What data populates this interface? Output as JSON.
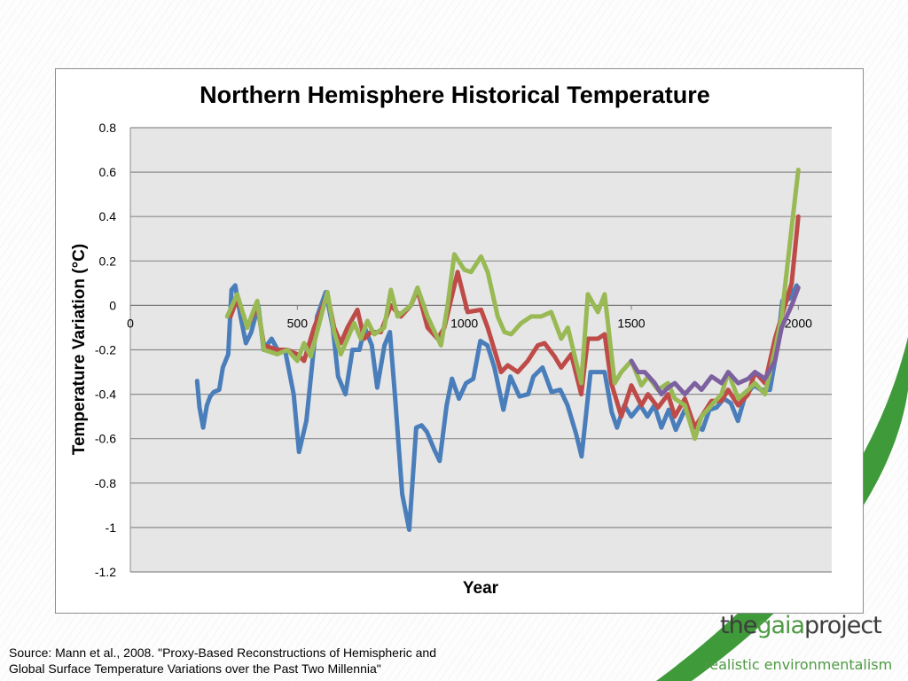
{
  "chart_data": {
    "type": "line",
    "title": "Northern Hemisphere Historical Temperature",
    "xlabel": "Year",
    "ylabel": "Temperature Variation (°C)",
    "xlim": [
      0,
      2100
    ],
    "ylim": [
      -1.2,
      0.8
    ],
    "x_ticks": [
      "0",
      "500",
      "1000",
      "1500",
      "2000"
    ],
    "x_tick_values": [
      0,
      500,
      1000,
      1500,
      2000
    ],
    "y_ticks": [
      "0.8",
      "0.6",
      "0.4",
      "0.2",
      "0",
      "-0.2",
      "-0.4",
      "-0.6",
      "-0.8",
      "-1",
      "-1.2"
    ],
    "y_tick_values": [
      0.8,
      0.6,
      0.4,
      0.2,
      0,
      -0.2,
      -0.4,
      -0.6,
      -0.8,
      -1,
      -1.2
    ],
    "grid": true,
    "legend": "none",
    "series": [
      {
        "color": "#4a7ebb",
        "x": [
          200,
          207,
          218,
          229,
          239,
          250,
          266,
          277,
          293,
          303,
          314,
          330,
          346,
          362,
          383,
          399,
          423,
          441,
          463,
          489,
          505,
          527,
          559,
          585,
          606,
          622,
          644,
          665,
          686,
          702,
          723,
          739,
          761,
          777,
          793,
          814,
          835,
          856,
          872,
          888,
          910,
          926,
          947,
          963,
          984,
          1005,
          1027,
          1048,
          1069,
          1090,
          1117,
          1138,
          1165,
          1191,
          1207,
          1234,
          1261,
          1287,
          1309,
          1335,
          1351,
          1378,
          1399,
          1420,
          1441,
          1457,
          1479,
          1500,
          1527,
          1548,
          1569,
          1590,
          1612,
          1633,
          1660,
          1686,
          1713,
          1734,
          1755,
          1777,
          1798,
          1819,
          1840,
          1867,
          1888,
          1915,
          1936,
          1952,
          1973,
          1995
        ],
        "y": [
          -0.34,
          -0.46,
          -0.55,
          -0.45,
          -0.41,
          -0.39,
          -0.38,
          -0.28,
          -0.22,
          0.07,
          0.09,
          -0.05,
          -0.17,
          -0.12,
          0.0,
          -0.2,
          -0.15,
          -0.2,
          -0.2,
          -0.4,
          -0.66,
          -0.52,
          -0.05,
          0.06,
          -0.1,
          -0.32,
          -0.4,
          -0.2,
          -0.2,
          -0.1,
          -0.18,
          -0.37,
          -0.18,
          -0.12,
          -0.42,
          -0.85,
          -1.01,
          -0.55,
          -0.54,
          -0.57,
          -0.65,
          -0.7,
          -0.45,
          -0.33,
          -0.42,
          -0.35,
          -0.33,
          -0.16,
          -0.18,
          -0.28,
          -0.47,
          -0.32,
          -0.41,
          -0.4,
          -0.32,
          -0.28,
          -0.39,
          -0.38,
          -0.45,
          -0.58,
          -0.68,
          -0.3,
          -0.3,
          -0.3,
          -0.48,
          -0.55,
          -0.45,
          -0.5,
          -0.45,
          -0.5,
          -0.45,
          -0.55,
          -0.47,
          -0.56,
          -0.47,
          -0.53,
          -0.56,
          -0.47,
          -0.46,
          -0.42,
          -0.44,
          -0.52,
          -0.41,
          -0.36,
          -0.38,
          -0.38,
          -0.2,
          0.02,
          0.03,
          0.09
        ]
      },
      {
        "color": "#be4b48",
        "x": [
          300,
          320,
          340,
          350,
          380,
          400,
          440,
          470,
          500,
          520,
          550,
          590,
          610,
          630,
          650,
          680,
          700,
          720,
          750,
          780,
          810,
          840,
          860,
          890,
          920,
          940,
          980,
          1010,
          1050,
          1070,
          1110,
          1130,
          1160,
          1190,
          1220,
          1240,
          1270,
          1290,
          1320,
          1350,
          1370,
          1400,
          1420,
          1440,
          1470,
          1500,
          1530,
          1550,
          1580,
          1610,
          1630,
          1660,
          1690,
          1710,
          1740,
          1770,
          1790,
          1820,
          1850,
          1870,
          1900,
          1930,
          1950,
          1980,
          2000
        ],
        "y": [
          -0.05,
          0.03,
          -0.05,
          -0.1,
          0.0,
          -0.18,
          -0.2,
          -0.2,
          -0.22,
          -0.25,
          -0.1,
          0.05,
          -0.1,
          -0.17,
          -0.1,
          -0.02,
          -0.15,
          -0.12,
          -0.12,
          0.0,
          -0.05,
          0.0,
          0.07,
          -0.1,
          -0.15,
          -0.1,
          0.15,
          -0.03,
          -0.02,
          -0.1,
          -0.3,
          -0.27,
          -0.3,
          -0.25,
          -0.18,
          -0.17,
          -0.23,
          -0.28,
          -0.22,
          -0.4,
          -0.15,
          -0.15,
          -0.13,
          -0.35,
          -0.5,
          -0.36,
          -0.45,
          -0.4,
          -0.46,
          -0.4,
          -0.5,
          -0.42,
          -0.55,
          -0.5,
          -0.43,
          -0.43,
          -0.38,
          -0.45,
          -0.4,
          -0.3,
          -0.35,
          -0.15,
          -0.05,
          0.1,
          0.4
        ]
      },
      {
        "color": "#98b954",
        "x": [
          290,
          320,
          350,
          380,
          400,
          440,
          470,
          500,
          520,
          540,
          590,
          610,
          630,
          670,
          690,
          710,
          730,
          760,
          780,
          800,
          840,
          860,
          890,
          930,
          950,
          970,
          1000,
          1020,
          1050,
          1070,
          1100,
          1120,
          1140,
          1170,
          1200,
          1230,
          1260,
          1290,
          1310,
          1350,
          1370,
          1400,
          1420,
          1450,
          1470,
          1500,
          1530,
          1550,
          1580,
          1610,
          1630,
          1660,
          1690,
          1710,
          1740,
          1770,
          1790,
          1820,
          1850,
          1870,
          1900,
          1930,
          1950,
          1980,
          2000
        ],
        "y": [
          -0.05,
          0.05,
          -0.1,
          0.02,
          -0.2,
          -0.22,
          -0.2,
          -0.25,
          -0.17,
          -0.23,
          0.06,
          -0.12,
          -0.22,
          -0.08,
          -0.15,
          -0.07,
          -0.13,
          -0.1,
          0.07,
          -0.05,
          0.0,
          0.08,
          -0.05,
          -0.18,
          0.0,
          0.23,
          0.16,
          0.15,
          0.22,
          0.15,
          -0.05,
          -0.12,
          -0.13,
          -0.08,
          -0.05,
          -0.05,
          -0.03,
          -0.15,
          -0.1,
          -0.35,
          0.05,
          -0.03,
          0.05,
          -0.35,
          -0.3,
          -0.25,
          -0.36,
          -0.32,
          -0.38,
          -0.35,
          -0.42,
          -0.45,
          -0.6,
          -0.5,
          -0.45,
          -0.4,
          -0.3,
          -0.42,
          -0.38,
          -0.35,
          -0.4,
          -0.2,
          -0.05,
          0.35,
          0.61
        ]
      },
      {
        "color": "#7d60a0",
        "x": [
          1500,
          1520,
          1540,
          1570,
          1590,
          1610,
          1630,
          1660,
          1690,
          1710,
          1740,
          1770,
          1790,
          1820,
          1850,
          1870,
          1900,
          1930,
          1950,
          1980,
          2000
        ],
        "y": [
          -0.25,
          -0.3,
          -0.3,
          -0.35,
          -0.4,
          -0.37,
          -0.35,
          -0.4,
          -0.35,
          -0.38,
          -0.32,
          -0.35,
          -0.3,
          -0.35,
          -0.33,
          -0.3,
          -0.33,
          -0.25,
          -0.1,
          0.0,
          0.08
        ]
      }
    ]
  },
  "source": {
    "line1": "Source: Mann et al., 2008. \"Proxy-Based Reconstructions of Hemispheric and",
    "line2": "Global Surface Temperature Variations over the Past Two Millennia\""
  },
  "logo": {
    "the": "the",
    "gaia": "gaia",
    "project": "project",
    "tagline": "realistic environmentalism"
  },
  "colors": {
    "plot_bg": "#e6e6e6",
    "grid": "#8c8c8c",
    "logo_green": "#4f9a45"
  }
}
